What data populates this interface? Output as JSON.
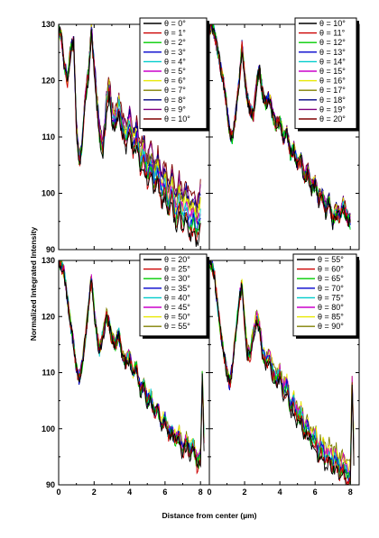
{
  "figure": {
    "ylabel": "Normalized Integrated Intensity",
    "xlabel": "Distance from center (µm)"
  },
  "chart_data": [
    {
      "type": "line",
      "panel": "top-left",
      "ylim": [
        90,
        130
      ],
      "xlim": [
        0,
        8.5
      ],
      "yticks": [
        "90",
        "100",
        "110",
        "120",
        "130"
      ],
      "xticks": [],
      "legend_position": "top-right",
      "series": [
        {
          "name": "θ = 0°",
          "color": "#000000"
        },
        {
          "name": "θ = 1°",
          "color": "#cc0000"
        },
        {
          "name": "θ = 2°",
          "color": "#00cc00"
        },
        {
          "name": "θ = 3°",
          "color": "#0000cc"
        },
        {
          "name": "θ = 4°",
          "color": "#00cccc"
        },
        {
          "name": "θ = 5°",
          "color": "#cc00cc"
        },
        {
          "name": "θ = 6°",
          "color": "#e8e800"
        },
        {
          "name": "θ = 7°",
          "color": "#808000"
        },
        {
          "name": "θ = 8°",
          "color": "#000080"
        },
        {
          "name": "θ = 9°",
          "color": "#800080"
        },
        {
          "name": "θ = 10°",
          "color": "#800000"
        }
      ],
      "profile": {
        "x": [
          0,
          0.15,
          0.3,
          0.5,
          0.7,
          0.85,
          1.0,
          1.15,
          1.3,
          1.5,
          1.7,
          1.85,
          2.0,
          2.15,
          2.3,
          2.5,
          2.7,
          2.85,
          3.0,
          3.2,
          3.4,
          3.6,
          3.8,
          4.0,
          4.2,
          4.4,
          4.6,
          4.8,
          5.0,
          5.2,
          5.4,
          5.6,
          5.8,
          6.0,
          6.2,
          6.4,
          6.6,
          6.8,
          7.0,
          7.2,
          7.4,
          7.6,
          7.8,
          8.0
        ],
        "y": [
          129,
          128,
          123,
          120,
          126,
          127,
          112,
          106,
          108,
          117,
          122,
          129,
          123,
          117,
          111,
          108,
          116,
          119,
          114,
          113,
          116,
          112,
          110,
          113,
          109,
          111,
          106,
          108,
          104,
          106,
          103,
          105,
          101,
          103,
          99,
          102,
          97,
          100,
          97,
          99,
          96,
          97,
          95,
          98
        ]
      }
    },
    {
      "type": "line",
      "panel": "top-right",
      "ylim": [
        90,
        130
      ],
      "xlim": [
        0,
        8.5
      ],
      "yticks": [],
      "xticks": [],
      "legend_position": "top-right",
      "series": [
        {
          "name": "θ = 10°",
          "color": "#000000"
        },
        {
          "name": "θ = 11°",
          "color": "#cc0000"
        },
        {
          "name": "θ = 12°",
          "color": "#00cc00"
        },
        {
          "name": "θ = 13°",
          "color": "#0000cc"
        },
        {
          "name": "θ = 14°",
          "color": "#00cccc"
        },
        {
          "name": "θ = 15°",
          "color": "#cc00cc"
        },
        {
          "name": "θ = 16°",
          "color": "#e8e800"
        },
        {
          "name": "θ = 17°",
          "color": "#808000"
        },
        {
          "name": "θ = 18°",
          "color": "#000080"
        },
        {
          "name": "θ = 19°",
          "color": "#800080"
        },
        {
          "name": "θ = 20°",
          "color": "#800000"
        }
      ],
      "profile": {
        "x": [
          0,
          0.15,
          0.3,
          0.5,
          0.7,
          0.85,
          1.0,
          1.15,
          1.3,
          1.5,
          1.7,
          1.85,
          2.0,
          2.15,
          2.3,
          2.5,
          2.7,
          2.85,
          3.0,
          3.2,
          3.4,
          3.6,
          3.8,
          4.0,
          4.2,
          4.4,
          4.6,
          4.8,
          5.0,
          5.2,
          5.4,
          5.6,
          5.8,
          6.0,
          6.2,
          6.4,
          6.6,
          6.8,
          7.0,
          7.2,
          7.4,
          7.6,
          7.8,
          8.0
        ],
        "y": [
          129,
          130,
          128,
          125,
          121,
          119,
          115,
          111,
          110,
          114,
          120,
          126,
          121,
          117,
          115,
          114,
          120,
          122,
          118,
          116,
          117,
          114,
          112,
          113,
          110,
          111,
          107,
          108,
          105,
          106,
          103,
          104,
          101,
          102,
          99,
          100,
          97,
          99,
          95,
          97,
          96,
          98,
          96,
          95
        ]
      }
    },
    {
      "type": "line",
      "panel": "bottom-left",
      "ylim": [
        90,
        130
      ],
      "xlim": [
        0,
        8.5
      ],
      "yticks": [
        "90",
        "100",
        "110",
        "120",
        "130"
      ],
      "xticks": [
        "0",
        "2",
        "4",
        "6",
        "8"
      ],
      "legend_position": "top-right",
      "series": [
        {
          "name": "θ = 20°",
          "color": "#000000"
        },
        {
          "name": "θ = 25°",
          "color": "#cc0000"
        },
        {
          "name": "θ = 30°",
          "color": "#00cc00"
        },
        {
          "name": "θ = 35°",
          "color": "#0000cc"
        },
        {
          "name": "θ = 40°",
          "color": "#00cccc"
        },
        {
          "name": "θ = 45°",
          "color": "#cc00cc"
        },
        {
          "name": "θ = 50°",
          "color": "#e8e800"
        },
        {
          "name": "θ = 55°",
          "color": "#808000"
        }
      ],
      "profile": {
        "x": [
          0,
          0.15,
          0.3,
          0.5,
          0.7,
          0.85,
          1.0,
          1.15,
          1.3,
          1.5,
          1.7,
          1.85,
          2.0,
          2.15,
          2.3,
          2.5,
          2.7,
          2.85,
          3.0,
          3.2,
          3.4,
          3.6,
          3.8,
          4.0,
          4.2,
          4.4,
          4.6,
          4.8,
          5.0,
          5.2,
          5.4,
          5.6,
          5.8,
          6.0,
          6.2,
          6.4,
          6.6,
          6.8,
          7.0,
          7.2,
          7.4,
          7.6,
          7.8,
          8.0,
          8.1,
          8.2
        ],
        "y": [
          130,
          129,
          128,
          123,
          118,
          115,
          111,
          109,
          111,
          116,
          122,
          127,
          121,
          117,
          114,
          117,
          120,
          119,
          116,
          115,
          117,
          113,
          112,
          113,
          110,
          111,
          107,
          108,
          105,
          106,
          103,
          104,
          101,
          102,
          99,
          100,
          98,
          99,
          96,
          98,
          96,
          97,
          94,
          95,
          110,
          98
        ]
      }
    },
    {
      "type": "line",
      "panel": "bottom-right",
      "ylim": [
        90,
        130
      ],
      "xlim": [
        0,
        8.5
      ],
      "yticks": [],
      "xticks": [
        "0",
        "2",
        "4",
        "6",
        "8"
      ],
      "legend_position": "top-right",
      "series": [
        {
          "name": "θ = 55°",
          "color": "#000000"
        },
        {
          "name": "θ = 60°",
          "color": "#cc0000"
        },
        {
          "name": "θ = 65°",
          "color": "#00cc00"
        },
        {
          "name": "θ = 70°",
          "color": "#0000cc"
        },
        {
          "name": "θ = 75°",
          "color": "#00cccc"
        },
        {
          "name": "θ = 80°",
          "color": "#cc00cc"
        },
        {
          "name": "θ = 85°",
          "color": "#e8e800"
        },
        {
          "name": "θ = 90°",
          "color": "#808000"
        }
      ],
      "profile": {
        "x": [
          0,
          0.15,
          0.3,
          0.5,
          0.7,
          0.85,
          1.0,
          1.15,
          1.3,
          1.5,
          1.7,
          1.85,
          2.0,
          2.15,
          2.3,
          2.5,
          2.7,
          2.85,
          3.0,
          3.2,
          3.4,
          3.6,
          3.8,
          4.0,
          4.2,
          4.4,
          4.6,
          4.8,
          5.0,
          5.2,
          5.4,
          5.6,
          5.8,
          6.0,
          6.2,
          6.4,
          6.6,
          6.8,
          7.0,
          7.2,
          7.4,
          7.6,
          7.8,
          8.0,
          8.1,
          8.2
        ],
        "y": [
          130,
          129,
          127,
          121,
          116,
          113,
          110,
          108,
          111,
          117,
          123,
          126,
          119,
          114,
          113,
          117,
          120,
          118,
          114,
          112,
          113,
          110,
          109,
          110,
          107,
          108,
          104,
          105,
          102,
          103,
          100,
          101,
          98,
          99,
          96,
          97,
          95,
          96,
          94,
          95,
          93,
          94,
          92,
          92,
          109,
          96
        ]
      }
    }
  ]
}
